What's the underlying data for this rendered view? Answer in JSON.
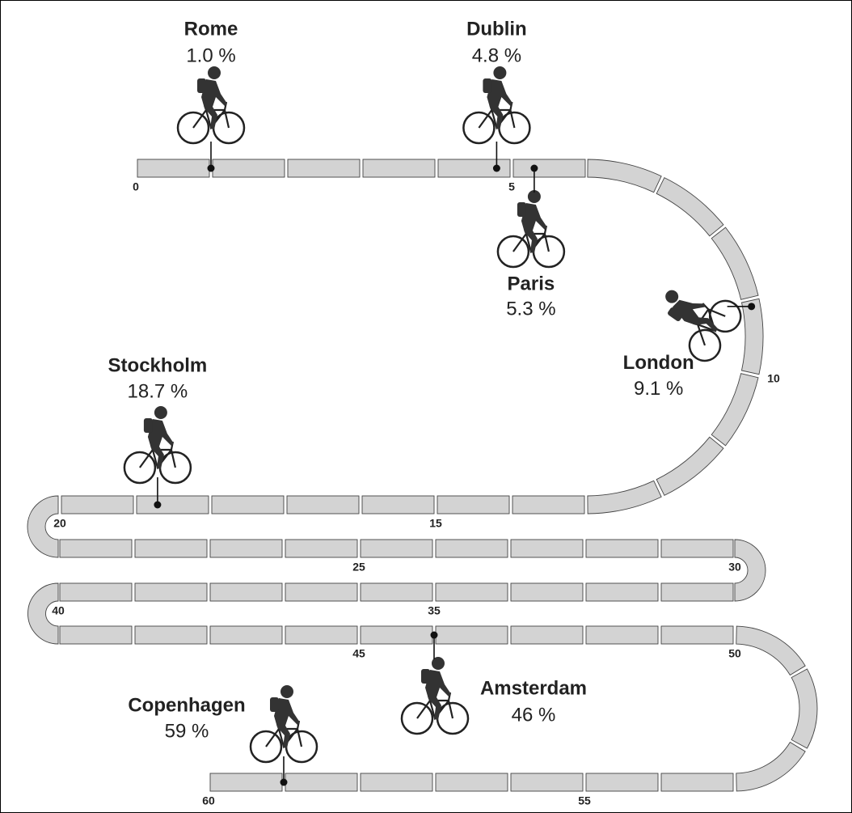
{
  "chart_data": {
    "type": "track",
    "categories": [
      "Rome",
      "Dublin",
      "Paris",
      "London",
      "Stockholm",
      "Amsterdam",
      "Copenhagen"
    ],
    "values": [
      1.0,
      4.8,
      5.3,
      9.1,
      18.7,
      46,
      59
    ],
    "value_labels": [
      "1.0 %",
      "4.8 %",
      "5.3 %",
      "9.1 %",
      "18.7 %",
      "46 %",
      "59 %"
    ],
    "xlim": [
      0,
      60
    ],
    "xticks": [
      0,
      5,
      10,
      15,
      20,
      25,
      30,
      35,
      40,
      45,
      50,
      55,
      60
    ]
  }
}
